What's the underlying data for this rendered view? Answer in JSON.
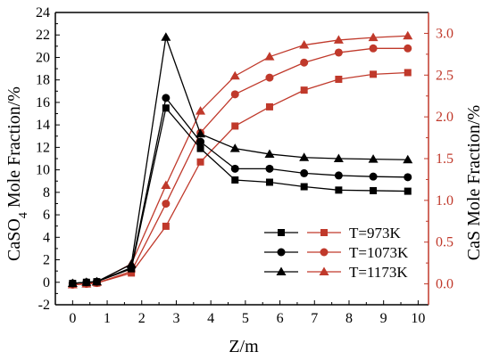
{
  "chart_data": {
    "type": "line",
    "xlabel": "Z/m",
    "ylabel_left": {
      "main": "CaSO",
      "sub": "4",
      "rest": " Mole Fraction/%"
    },
    "ylabel_right": "CaS Mole Fraction/%",
    "xlim": [
      -0.5,
      10.3
    ],
    "xticks": [
      "0",
      "1",
      "2",
      "3",
      "4",
      "5",
      "6",
      "7",
      "8",
      "9",
      "10"
    ],
    "ylim_left": [
      -2,
      24
    ],
    "yticks_left": [
      "-2",
      "0",
      "2",
      "4",
      "6",
      "8",
      "10",
      "12",
      "14",
      "16",
      "18",
      "20",
      "22",
      "24"
    ],
    "ylim_right": [
      -0.25,
      3.25
    ],
    "yticks_right": [
      "0.0",
      "0.5",
      "1.0",
      "1.5",
      "2.0",
      "2.5",
      "3.0"
    ],
    "colors": {
      "left": "#000000",
      "right": "#c0392b",
      "grid": "none"
    },
    "legend": {
      "position": "bottom-right",
      "entries": [
        "T=973K",
        "T=1073K",
        "T=1173K"
      ]
    },
    "x": [
      0,
      0.4,
      0.7,
      1.7,
      2.7,
      3.7,
      4.7,
      5.7,
      6.7,
      7.7,
      8.7,
      9.7
    ],
    "series_left": [
      {
        "name": "T=973K",
        "marker": "square",
        "x": [
          0,
          0.4,
          0.7,
          1.7,
          2.7,
          3.7,
          4.7,
          5.7,
          6.7,
          7.7,
          8.7,
          9.7
        ],
        "values": [
          -0.1,
          0,
          0.05,
          1.2,
          15.5,
          11.9,
          9.1,
          8.9,
          8.5,
          8.2,
          8.15,
          8.1
        ]
      },
      {
        "name": "T=1073K",
        "marker": "circle",
        "x": [
          0,
          0.4,
          0.7,
          1.7,
          2.7,
          3.7,
          4.7,
          5.7,
          6.7,
          7.7,
          8.7,
          9.7
        ],
        "values": [
          -0.1,
          0,
          0.05,
          1.3,
          16.4,
          12.5,
          10.1,
          10.1,
          9.7,
          9.5,
          9.4,
          9.35
        ]
      },
      {
        "name": "T=1173K",
        "marker": "triangle",
        "x": [
          0,
          0.4,
          0.7,
          1.7,
          2.7,
          3.7,
          4.7,
          5.7,
          6.7,
          7.7,
          8.7,
          9.7
        ],
        "values": [
          -0.1,
          0,
          0.05,
          1.6,
          21.8,
          13.2,
          11.9,
          11.4,
          11.1,
          11.0,
          10.95,
          10.9
        ]
      }
    ],
    "series_right": [
      {
        "name": "T=973K",
        "marker": "square",
        "x": [
          0,
          0.4,
          0.7,
          1.7,
          2.7,
          3.7,
          4.7,
          5.7,
          6.7,
          7.7,
          8.7,
          9.7
        ],
        "values": [
          -0.01,
          0.0,
          0.01,
          0.13,
          0.69,
          1.46,
          1.89,
          2.12,
          2.32,
          2.45,
          2.51,
          2.53
        ]
      },
      {
        "name": "T=1073K",
        "marker": "circle",
        "x": [
          0,
          0.4,
          0.7,
          1.7,
          2.7,
          3.7,
          4.7,
          5.7,
          6.7,
          7.7,
          8.7,
          9.7
        ],
        "values": [
          -0.01,
          0.0,
          0.01,
          0.15,
          0.96,
          1.81,
          2.27,
          2.47,
          2.65,
          2.77,
          2.82,
          2.82
        ]
      },
      {
        "name": "T=1173K",
        "marker": "triangle",
        "x": [
          0,
          0.4,
          0.7,
          1.7,
          2.7,
          3.7,
          4.7,
          5.7,
          6.7,
          7.7,
          8.7,
          9.7
        ],
        "values": [
          -0.01,
          0.0,
          0.02,
          0.24,
          1.18,
          2.07,
          2.49,
          2.72,
          2.86,
          2.92,
          2.95,
          2.97
        ]
      }
    ]
  }
}
